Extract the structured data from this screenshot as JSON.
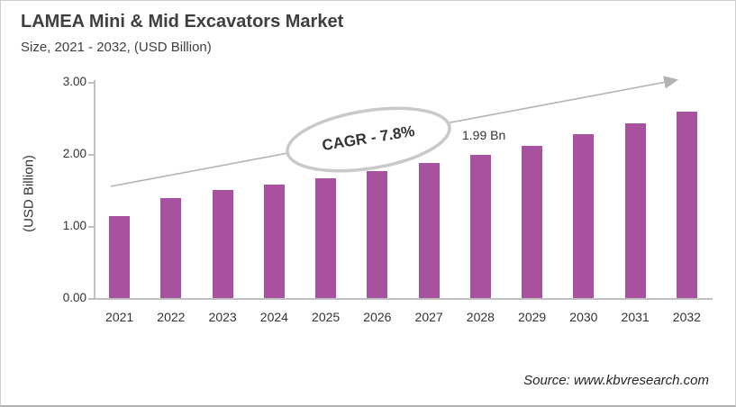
{
  "header": {
    "title": "LAMEA Mini & Mid Excavators Market",
    "subtitle": "Size, 2021 - 2032, (USD Billion)"
  },
  "chart_data": {
    "type": "bar",
    "title": "LAMEA Mini & Mid Excavators Market",
    "subtitle": "Size, 2021 - 2032, (USD Billion)",
    "categories": [
      "2021",
      "2022",
      "2023",
      "2024",
      "2025",
      "2026",
      "2027",
      "2028",
      "2029",
      "2030",
      "2031",
      "2032"
    ],
    "values": [
      1.14,
      1.39,
      1.5,
      1.57,
      1.66,
      1.76,
      1.87,
      1.99,
      2.11,
      2.27,
      2.42,
      2.59
    ],
    "xlabel": "",
    "ylabel": "(USD Billion)",
    "yticks": [
      "0.00",
      "1.00",
      "2.00",
      "3.00"
    ],
    "ylim": [
      0,
      3
    ],
    "grid": false,
    "legend": false,
    "bar_color": "#A8519E",
    "axis_color": "#BFBFBF",
    "arrow_color": "#B3B3B3",
    "ellipse_border_color": "#C9C9C9",
    "annotations": {
      "cagr_label": "CAGR - 7.8%",
      "value_label": "1.99 Bn",
      "value_label_category": "2028"
    }
  },
  "footer": {
    "source": "Source: www.kbvresearch.com"
  }
}
